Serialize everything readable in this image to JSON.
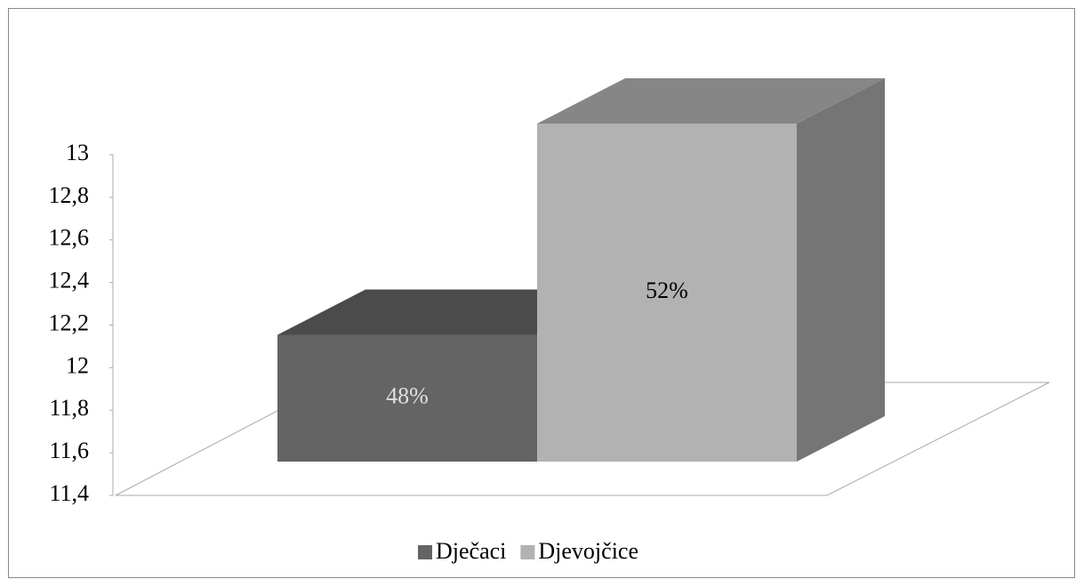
{
  "chart_data": {
    "type": "bar3d",
    "categories": [
      null
    ],
    "series": [
      {
        "name": "Dječaci",
        "color": "#646464",
        "values": [
          12
        ],
        "value_labels": [
          "48%"
        ]
      },
      {
        "name": "Djevojčice",
        "color": "#b2b2b2",
        "values": [
          13
        ],
        "value_labels": [
          "52%"
        ]
      }
    ],
    "ylim": [
      11.4,
      13
    ],
    "yticks": [
      {
        "value": 11.4,
        "label": "11,4"
      },
      {
        "value": 11.6,
        "label": "11,6"
      },
      {
        "value": 11.8,
        "label": "11,8"
      },
      12,
      {
        "value": 12.2,
        "label": "12,2"
      },
      {
        "value": 12.4,
        "label": "12,4"
      },
      {
        "value": 12.6,
        "label": "12,6"
      },
      {
        "value": 12.8,
        "label": "12,8"
      },
      13
    ],
    "legend": "bottom"
  }
}
